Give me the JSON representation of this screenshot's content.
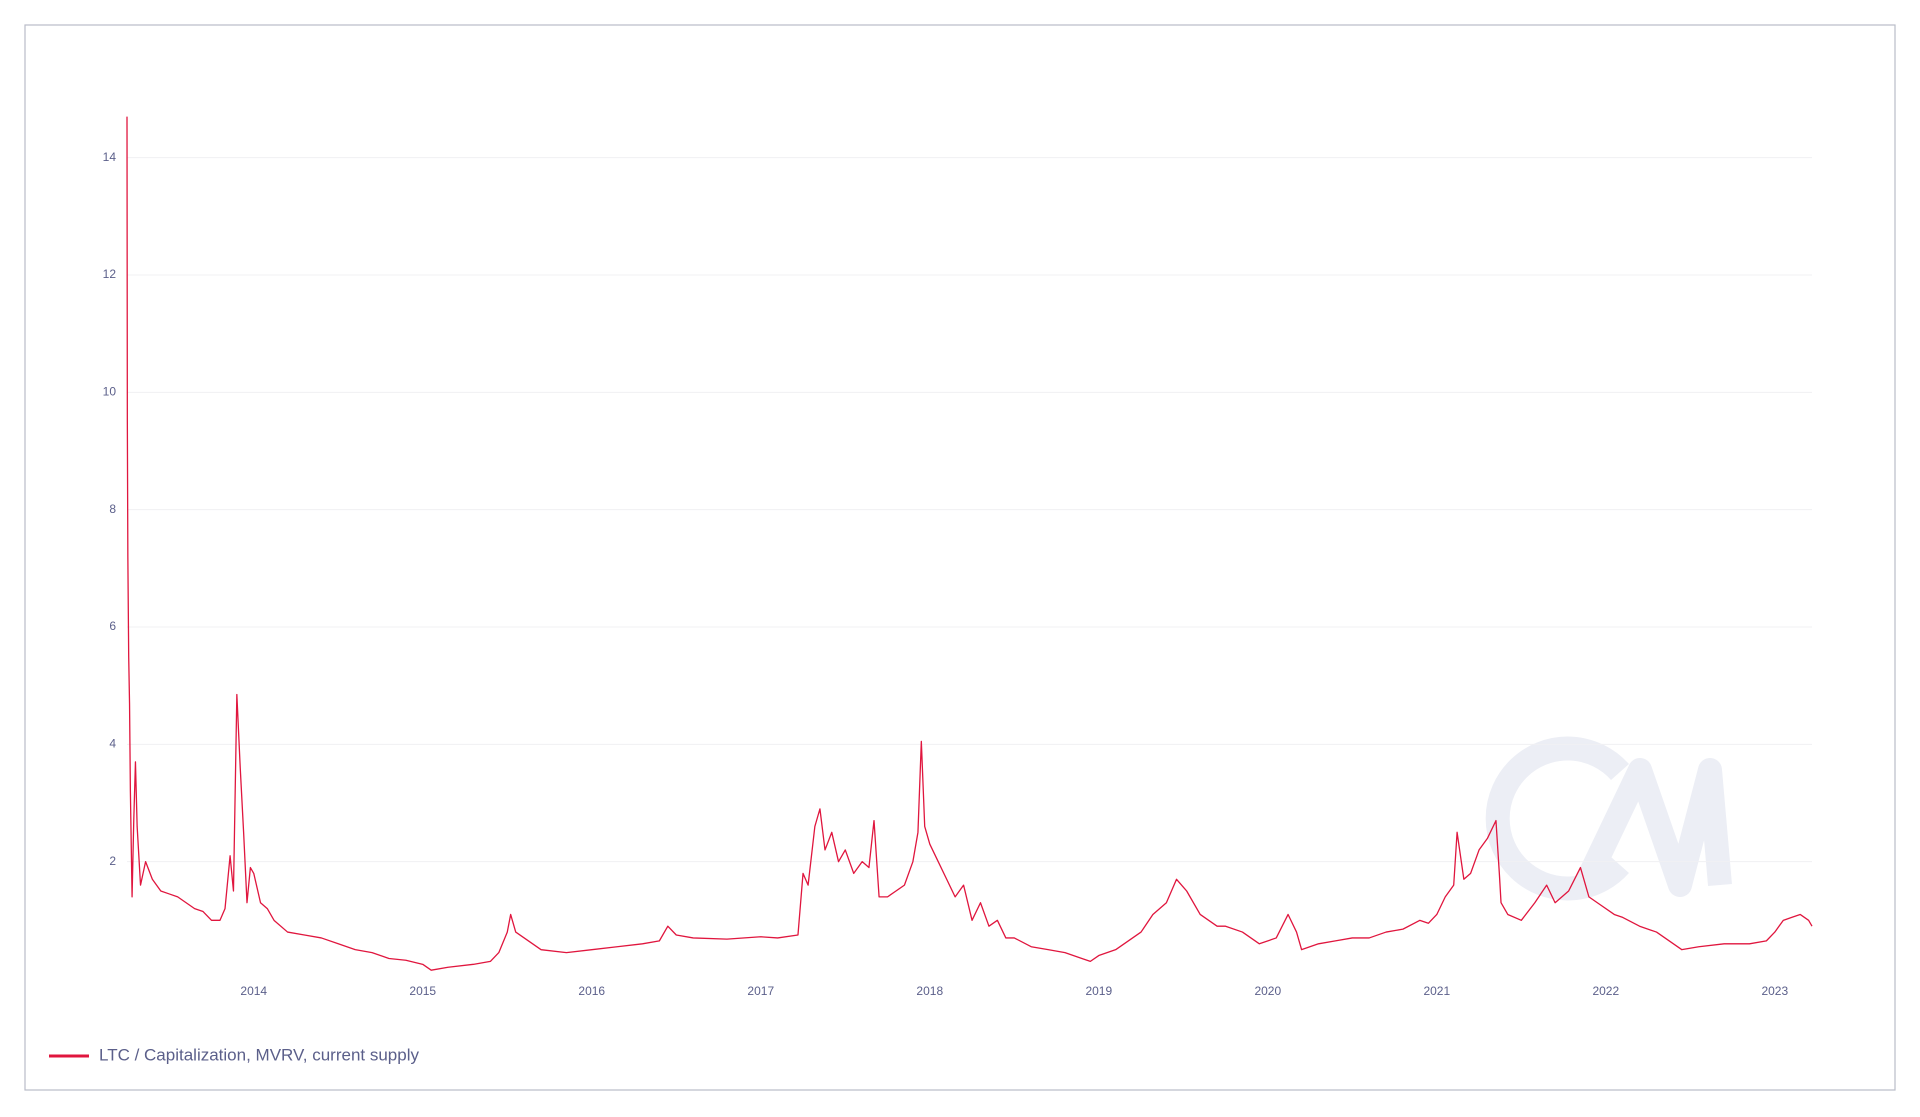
{
  "chart_data": {
    "type": "line",
    "x": [
      2013.25,
      2013.252,
      2013.255,
      2013.26,
      2013.265,
      2013.27,
      2013.28,
      2013.29,
      2013.3,
      2013.31,
      2013.33,
      2013.36,
      2013.4,
      2013.45,
      2013.5,
      2013.55,
      2013.6,
      2013.65,
      2013.7,
      2013.75,
      2013.8,
      2013.83,
      2013.86,
      2013.88,
      2013.9,
      2013.92,
      2013.94,
      2013.96,
      2013.98,
      2014.0,
      2014.04,
      2014.08,
      2014.12,
      2014.2,
      2014.3,
      2014.4,
      2014.5,
      2014.6,
      2014.7,
      2014.8,
      2014.9,
      2015.0,
      2015.05,
      2015.15,
      2015.3,
      2015.4,
      2015.45,
      2015.5,
      2015.52,
      2015.55,
      2015.6,
      2015.7,
      2015.85,
      2016.0,
      2016.15,
      2016.3,
      2016.4,
      2016.45,
      2016.5,
      2016.6,
      2016.8,
      2017.0,
      2017.1,
      2017.22,
      2017.25,
      2017.28,
      2017.32,
      2017.35,
      2017.38,
      2017.42,
      2017.46,
      2017.5,
      2017.55,
      2017.6,
      2017.64,
      2017.67,
      2017.7,
      2017.75,
      2017.8,
      2017.85,
      2017.9,
      2017.93,
      2017.95,
      2017.97,
      2018.0,
      2018.05,
      2018.1,
      2018.15,
      2018.2,
      2018.25,
      2018.3,
      2018.35,
      2018.4,
      2018.45,
      2018.5,
      2018.6,
      2018.7,
      2018.8,
      2018.9,
      2018.95,
      2019.0,
      2019.1,
      2019.2,
      2019.25,
      2019.32,
      2019.4,
      2019.46,
      2019.52,
      2019.6,
      2019.7,
      2019.75,
      2019.85,
      2019.95,
      2020.05,
      2020.12,
      2020.17,
      2020.2,
      2020.3,
      2020.4,
      2020.5,
      2020.6,
      2020.7,
      2020.8,
      2020.9,
      2020.95,
      2021.0,
      2021.05,
      2021.1,
      2021.12,
      2021.16,
      2021.2,
      2021.25,
      2021.3,
      2021.35,
      2021.37,
      2021.38,
      2021.42,
      2021.5,
      2021.58,
      2021.65,
      2021.7,
      2021.78,
      2021.85,
      2021.9,
      2021.95,
      2022.05,
      2022.1,
      2022.2,
      2022.3,
      2022.4,
      2022.45,
      2022.55,
      2022.7,
      2022.85,
      2022.95,
      2023.0,
      2023.05,
      2023.1,
      2023.15,
      2023.2,
      2023.22
    ],
    "series": [
      {
        "name": "LTC / Capitalization, MVRV, current supply",
        "color": "#e0163e",
        "values": [
          14.7,
          9.5,
          7.2,
          5.5,
          4.7,
          3.2,
          1.4,
          2.7,
          3.7,
          2.6,
          1.6,
          2.0,
          1.7,
          1.5,
          1.45,
          1.4,
          1.3,
          1.2,
          1.15,
          1.0,
          1.0,
          1.2,
          2.1,
          1.5,
          4.85,
          3.6,
          2.5,
          1.3,
          1.9,
          1.8,
          1.3,
          1.2,
          1.0,
          0.8,
          0.75,
          0.7,
          0.6,
          0.5,
          0.45,
          0.35,
          0.32,
          0.25,
          0.15,
          0.2,
          0.25,
          0.3,
          0.45,
          0.8,
          1.1,
          0.8,
          0.7,
          0.5,
          0.45,
          0.5,
          0.55,
          0.6,
          0.65,
          0.9,
          0.75,
          0.7,
          0.68,
          0.72,
          0.7,
          0.75,
          1.8,
          1.6,
          2.6,
          2.9,
          2.2,
          2.5,
          2.0,
          2.2,
          1.8,
          2.0,
          1.9,
          2.7,
          1.4,
          1.4,
          1.5,
          1.6,
          2.0,
          2.5,
          4.05,
          2.6,
          2.3,
          2.0,
          1.7,
          1.4,
          1.6,
          1.0,
          1.3,
          0.9,
          1.0,
          0.7,
          0.7,
          0.55,
          0.5,
          0.45,
          0.35,
          0.3,
          0.4,
          0.5,
          0.7,
          0.8,
          1.1,
          1.3,
          1.7,
          1.5,
          1.1,
          0.9,
          0.9,
          0.8,
          0.6,
          0.7,
          1.1,
          0.8,
          0.5,
          0.6,
          0.65,
          0.7,
          0.7,
          0.8,
          0.85,
          1.0,
          0.95,
          1.1,
          1.4,
          1.6,
          2.5,
          1.7,
          1.8,
          2.2,
          2.4,
          2.7,
          1.8,
          1.3,
          1.1,
          1.0,
          1.3,
          1.6,
          1.3,
          1.5,
          1.9,
          1.4,
          1.3,
          1.1,
          1.05,
          0.9,
          0.8,
          0.6,
          0.5,
          0.55,
          0.6,
          0.6,
          0.65,
          0.8,
          1.0,
          1.05,
          1.1,
          1.0,
          0.9
        ]
      }
    ],
    "xlim": [
      2013.25,
      2023.22
    ],
    "xticks": [
      2014,
      2015,
      2016,
      2017,
      2018,
      2019,
      2020,
      2021,
      2022,
      2023
    ],
    "ylim": [
      0,
      15
    ],
    "yticks": [
      2,
      4,
      6,
      8,
      10,
      12,
      14
    ],
    "grid": true,
    "legend": "bottom-left"
  }
}
